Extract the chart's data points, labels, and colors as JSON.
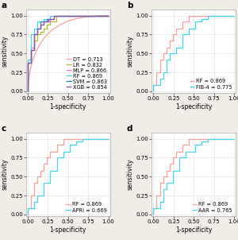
{
  "background_color": "#f0ece6",
  "panel_bg": "#ffffff",
  "subplot_labels": [
    "a",
    "b",
    "c",
    "d"
  ],
  "tick_labelsize": 5.0,
  "axis_labelsize": 5.5,
  "legend_fontsize": 4.8,
  "linewidth": 0.9,
  "grid_color": "#e0e0e0",
  "colors": {
    "DT": "#f5a09a",
    "LR": "#b8b820",
    "MLP": "#e87ad0",
    "RF_a": "#40d8e8",
    "RF": "#f5a09a",
    "SVM": "#1090b8",
    "XGB": "#9050a8",
    "FIB4": "#40d8e8",
    "APRI": "#40d8e8",
    "AAR": "#40d8e8"
  },
  "panel_a": {
    "curves": {
      "DT": {
        "x": [
          0.0,
          0.02,
          0.05,
          0.1,
          0.15,
          0.2,
          0.25,
          0.3,
          0.4,
          0.5,
          0.6,
          0.7,
          0.8,
          0.9,
          1.0
        ],
        "y": [
          0.0,
          0.22,
          0.38,
          0.52,
          0.62,
          0.7,
          0.76,
          0.81,
          0.88,
          0.93,
          0.96,
          0.98,
          0.99,
          1.0,
          1.0
        ],
        "smooth": true
      },
      "LR": {
        "x": [
          0,
          0,
          0.04,
          0.04,
          0.08,
          0.08,
          0.12,
          0.12,
          0.16,
          0.16,
          0.2,
          0.2,
          0.24,
          0.24,
          0.28,
          0.28,
          0.35,
          0.35,
          1.0
        ],
        "y": [
          0,
          0.38,
          0.38,
          0.54,
          0.54,
          0.67,
          0.67,
          0.75,
          0.75,
          0.79,
          0.79,
          0.83,
          0.83,
          0.88,
          0.88,
          0.92,
          0.92,
          1.0,
          1.0
        ]
      },
      "MLP": {
        "x": [
          0,
          0,
          0.04,
          0.04,
          0.08,
          0.08,
          0.12,
          0.12,
          0.16,
          0.16,
          0.2,
          0.2,
          0.28,
          0.28,
          1.0
        ],
        "y": [
          0,
          0.42,
          0.42,
          0.58,
          0.58,
          0.75,
          0.75,
          0.83,
          0.83,
          0.88,
          0.88,
          0.92,
          0.92,
          1.0,
          1.0
        ]
      },
      "RF": {
        "x": [
          0,
          0,
          0.04,
          0.04,
          0.08,
          0.08,
          0.12,
          0.12,
          0.2,
          0.2,
          0.28,
          0.28,
          1.0
        ],
        "y": [
          0,
          0.42,
          0.42,
          0.75,
          0.75,
          0.83,
          0.83,
          0.92,
          0.92,
          0.96,
          0.96,
          1.0,
          1.0
        ]
      },
      "SVM": {
        "x": [
          0,
          0,
          0.04,
          0.04,
          0.08,
          0.08,
          0.12,
          0.12,
          0.16,
          0.16,
          0.24,
          0.24,
          0.32,
          0.32,
          1.0
        ],
        "y": [
          0,
          0.38,
          0.38,
          0.54,
          0.54,
          0.75,
          0.75,
          0.83,
          0.83,
          0.92,
          0.92,
          0.96,
          0.96,
          1.0,
          1.0
        ]
      },
      "XGB": {
        "x": [
          0,
          0,
          0.04,
          0.04,
          0.08,
          0.08,
          0.12,
          0.12,
          0.16,
          0.16,
          0.2,
          0.2,
          0.26,
          0.26,
          0.32,
          0.32,
          1.0
        ],
        "y": [
          0,
          0.38,
          0.38,
          0.54,
          0.54,
          0.75,
          0.75,
          0.83,
          0.83,
          0.88,
          0.88,
          0.92,
          0.92,
          0.96,
          0.96,
          1.0,
          1.0
        ]
      }
    },
    "legend": {
      "DT": "DT = 0.713",
      "LR": "LR = 0.832",
      "MLP": "MLP = 0.866",
      "RF": "RF = 0.869",
      "SVM": "SVM = 0.863",
      "XGB": "XGB = 0.854"
    }
  },
  "panel_b": {
    "curves": {
      "RF": {
        "x": [
          0,
          0,
          0.04,
          0.04,
          0.08,
          0.08,
          0.12,
          0.12,
          0.16,
          0.16,
          0.2,
          0.2,
          0.24,
          0.24,
          0.28,
          0.28,
          0.36,
          0.36,
          0.44,
          0.44,
          1.0
        ],
        "y": [
          0,
          0.08,
          0.08,
          0.25,
          0.25,
          0.42,
          0.42,
          0.5,
          0.5,
          0.58,
          0.58,
          0.67,
          0.67,
          0.75,
          0.75,
          0.83,
          0.83,
          0.92,
          0.92,
          1.0,
          1.0
        ]
      },
      "FIB4": {
        "x": [
          0,
          0,
          0.08,
          0.08,
          0.12,
          0.12,
          0.16,
          0.16,
          0.2,
          0.2,
          0.28,
          0.28,
          0.36,
          0.36,
          0.44,
          0.44,
          0.52,
          0.52,
          0.6,
          0.6,
          0.68,
          0.68,
          1.0
        ],
        "y": [
          0,
          0.08,
          0.08,
          0.17,
          0.17,
          0.25,
          0.25,
          0.42,
          0.42,
          0.5,
          0.5,
          0.58,
          0.58,
          0.75,
          0.75,
          0.83,
          0.83,
          0.92,
          0.92,
          0.96,
          0.96,
          1.0,
          1.0
        ]
      }
    },
    "legend": {
      "RF": "RF = 0.869",
      "FIB4": "FIB-4 = 0.775"
    }
  },
  "panel_c": {
    "curves": {
      "RF": {
        "x": [
          0,
          0,
          0.04,
          0.04,
          0.08,
          0.08,
          0.12,
          0.12,
          0.16,
          0.16,
          0.2,
          0.2,
          0.24,
          0.24,
          0.28,
          0.28,
          0.36,
          0.36,
          0.44,
          0.44,
          1.0
        ],
        "y": [
          0,
          0.08,
          0.08,
          0.25,
          0.25,
          0.42,
          0.42,
          0.5,
          0.5,
          0.58,
          0.58,
          0.67,
          0.67,
          0.75,
          0.75,
          0.83,
          0.83,
          0.92,
          0.92,
          1.0,
          1.0
        ]
      },
      "APRI": {
        "x": [
          0,
          0,
          0.04,
          0.04,
          0.08,
          0.08,
          0.12,
          0.12,
          0.2,
          0.2,
          0.28,
          0.28,
          0.36,
          0.36,
          0.44,
          0.44,
          0.52,
          0.52,
          0.6,
          0.6,
          0.68,
          0.68,
          0.76,
          0.76,
          1.0
        ],
        "y": [
          0,
          0.08,
          0.08,
          0.08,
          0.08,
          0.17,
          0.17,
          0.25,
          0.25,
          0.42,
          0.42,
          0.58,
          0.58,
          0.75,
          0.75,
          0.83,
          0.83,
          0.92,
          0.92,
          0.96,
          0.96,
          1.0,
          1.0,
          1.0,
          1.0
        ]
      }
    },
    "legend": {
      "RF": "RF = 0.869",
      "APRI": "APRi = 0.669"
    }
  },
  "panel_d": {
    "curves": {
      "RF": {
        "x": [
          0,
          0,
          0.04,
          0.04,
          0.08,
          0.08,
          0.12,
          0.12,
          0.16,
          0.16,
          0.2,
          0.2,
          0.24,
          0.24,
          0.28,
          0.28,
          0.36,
          0.36,
          0.44,
          0.44,
          1.0
        ],
        "y": [
          0,
          0.08,
          0.08,
          0.25,
          0.25,
          0.42,
          0.42,
          0.5,
          0.5,
          0.58,
          0.58,
          0.67,
          0.67,
          0.75,
          0.75,
          0.83,
          0.83,
          0.92,
          0.92,
          1.0,
          1.0
        ]
      },
      "AAR": {
        "x": [
          0,
          0,
          0.04,
          0.04,
          0.08,
          0.08,
          0.12,
          0.12,
          0.16,
          0.16,
          0.24,
          0.24,
          0.32,
          0.32,
          0.4,
          0.4,
          0.52,
          0.52,
          0.6,
          0.6,
          0.68,
          0.68,
          1.0
        ],
        "y": [
          0,
          0.08,
          0.08,
          0.08,
          0.08,
          0.17,
          0.17,
          0.33,
          0.33,
          0.42,
          0.42,
          0.58,
          0.58,
          0.75,
          0.75,
          0.83,
          0.83,
          0.92,
          0.92,
          0.96,
          0.96,
          1.0,
          1.0
        ]
      }
    },
    "legend": {
      "RF": "RF = 0.869",
      "AAR": "AAR = 0.765"
    }
  }
}
